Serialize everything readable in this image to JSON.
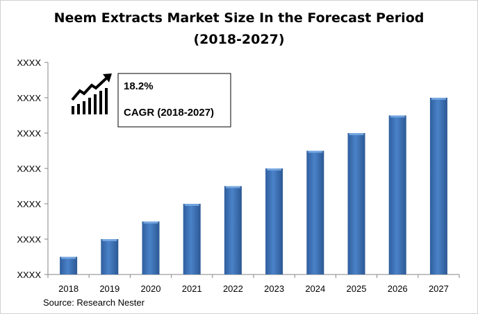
{
  "chart_data": {
    "type": "bar",
    "title": "Neem Extracts Market Size In the Forecast Period",
    "subtitle": "(2018-2027)",
    "categories": [
      "2018",
      "2019",
      "2020",
      "2021",
      "2022",
      "2023",
      "2024",
      "2025",
      "2026",
      "2027"
    ],
    "values": [
      0.5,
      1.0,
      1.5,
      2.0,
      2.5,
      3.0,
      3.5,
      4.0,
      4.5,
      5.0
    ],
    "ylim": [
      0,
      6
    ],
    "yticks": [
      0,
      1,
      2,
      3,
      4,
      5,
      6
    ],
    "ytick_labels": [
      "XXXX",
      "XXXX",
      "XXXX",
      "XXXX",
      "XXXX",
      "XXXX",
      "XXXX"
    ],
    "xlabel": "",
    "ylabel": "",
    "grid": false,
    "bar_color": "#3f73b8",
    "annotation": {
      "value": "18.2%",
      "label": "CAGR (2018-2027)",
      "icon": "growth-chart-arrow-icon"
    },
    "source": "Source: Research Nester"
  }
}
